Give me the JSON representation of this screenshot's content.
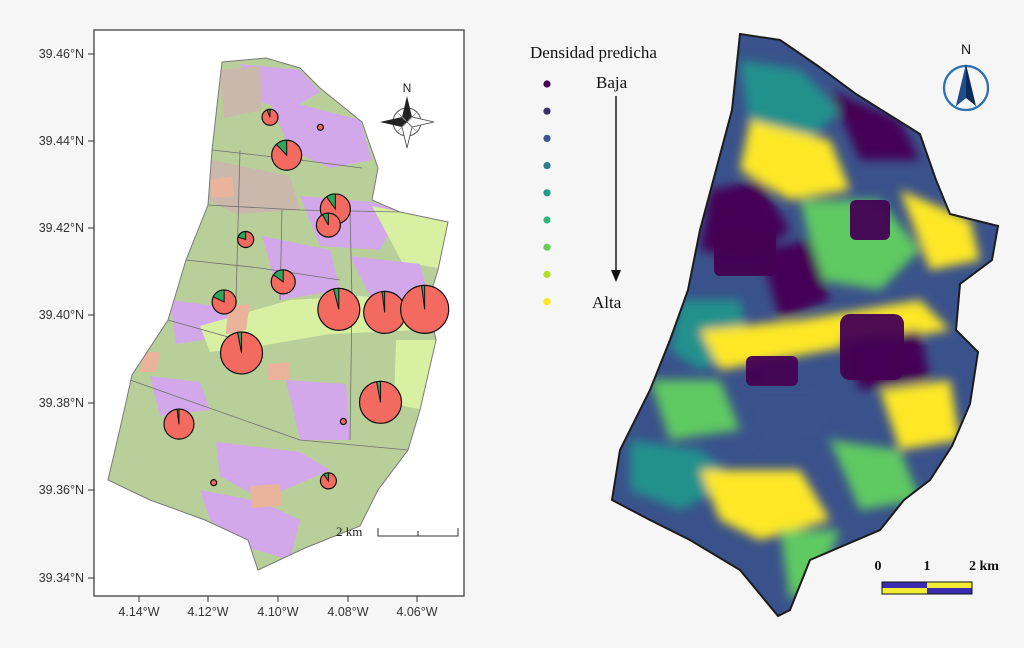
{
  "left_map": {
    "lat_ticks": [
      "39.46°N",
      "39.44°N",
      "39.42°N",
      "39.40°N",
      "39.38°N",
      "39.36°N",
      "39.34°N"
    ],
    "lon_ticks": [
      "4.14°W",
      "4.12°W",
      "4.10°W",
      "4.08°W",
      "4.06°W"
    ],
    "north_label": "N",
    "scale_label": "2 km",
    "land_colors": {
      "pasture": "#b9cf9a",
      "heath": "#d2a8ea",
      "grass": "#d8f0a2",
      "sand": "#c9b8ab",
      "crop": "#e9b49b"
    },
    "pie_colors": {
      "main": "#f26a60",
      "minor": "#2fa65a"
    },
    "pies": [
      {
        "lon": -4.1023,
        "lat": 39.4455,
        "size": "tiny",
        "share": 0.06
      },
      {
        "lon": -4.0878,
        "lat": 39.4432,
        "size": "dot",
        "share": 0.0
      },
      {
        "lon": -4.0975,
        "lat": 39.4368,
        "size": "medium",
        "share": 0.12
      },
      {
        "lon": -4.0835,
        "lat": 39.4245,
        "size": "medium",
        "share": 0.1
      },
      {
        "lon": -4.0855,
        "lat": 39.4208,
        "size": "small",
        "share": 0.08
      },
      {
        "lon": -4.1093,
        "lat": 39.4175,
        "size": "tiny",
        "share": 0.2
      },
      {
        "lon": -4.0985,
        "lat": 39.4078,
        "size": "small",
        "share": 0.15
      },
      {
        "lon": -4.1155,
        "lat": 39.4032,
        "size": "small",
        "share": 0.18
      },
      {
        "lon": -4.0825,
        "lat": 39.4015,
        "size": "large",
        "share": 0.04
      },
      {
        "lon": -4.0693,
        "lat": 39.4008,
        "size": "large",
        "share": 0.02
      },
      {
        "lon": -4.0578,
        "lat": 39.4015,
        "size": "xlarge",
        "share": 0.02
      },
      {
        "lon": -4.1105,
        "lat": 39.3915,
        "size": "large",
        "share": 0.03
      },
      {
        "lon": -4.0705,
        "lat": 39.3802,
        "size": "large",
        "share": 0.03
      },
      {
        "lon": -4.1285,
        "lat": 39.3752,
        "size": "medium",
        "share": 0.02
      },
      {
        "lon": -4.0812,
        "lat": 39.3758,
        "size": "dot",
        "share": 0.0
      },
      {
        "lon": -4.1185,
        "lat": 39.3618,
        "size": "dot",
        "share": 0.0
      },
      {
        "lon": -4.0855,
        "lat": 39.3622,
        "size": "tiny",
        "share": 0.1
      }
    ]
  },
  "right_map": {
    "legend_title": "Densidad predicha",
    "legend_low": "Baja",
    "legend_high": "Alta",
    "legend_colors": [
      "#440154",
      "#3b2f6b",
      "#3c5393",
      "#2e7d8e",
      "#1f9a8a",
      "#2fb47c",
      "#6bcc5a",
      "#b4dd2b",
      "#fde725"
    ],
    "north_label": "N",
    "scale_labels": [
      "0",
      "1",
      "2 km"
    ],
    "scale_colors": [
      "#3b2bb0",
      "#f2ec35"
    ],
    "density_colors": [
      "#440154",
      "#3a528b",
      "#21918c",
      "#5ec962",
      "#fde725"
    ]
  }
}
